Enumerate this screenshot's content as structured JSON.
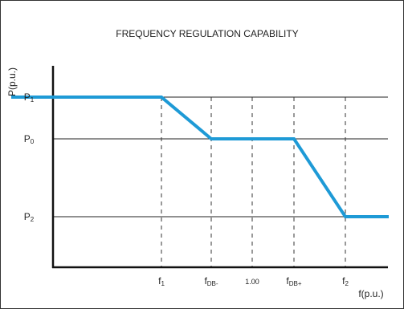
{
  "title": "FREQUENCY REGULATION CAPABILITY",
  "y_axis_label": "P(p.u.)",
  "x_axis_label": "f(p.u.)",
  "y_labels": [
    {
      "main": "P",
      "sub": "1"
    },
    {
      "main": "P",
      "sub": "0"
    },
    {
      "main": "P",
      "sub": "2"
    }
  ],
  "x_labels": [
    {
      "main": "f",
      "sub": "1"
    },
    {
      "main": "f",
      "sub": "DB-"
    },
    {
      "main": "1.00"
    },
    {
      "main": "f",
      "sub": "DB+"
    },
    {
      "main": "f",
      "sub": "2"
    }
  ]
}
